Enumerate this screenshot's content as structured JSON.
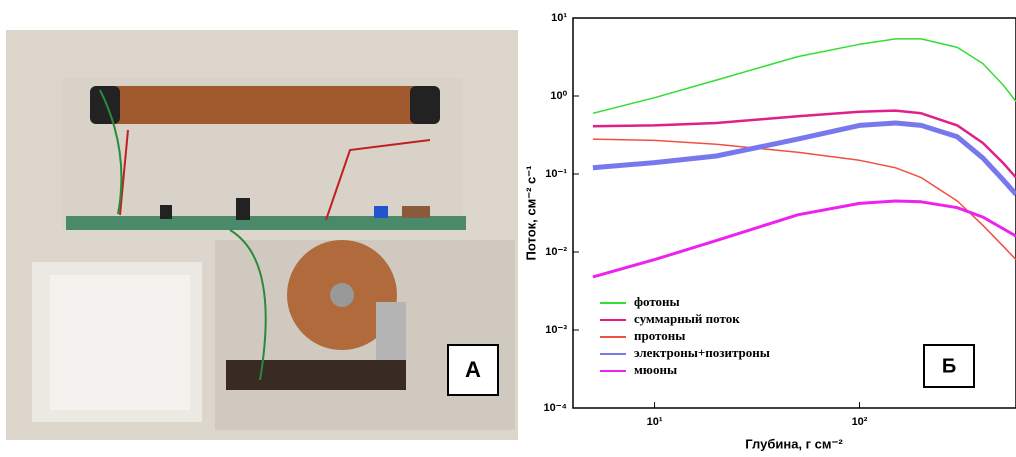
{
  "photo": {
    "label": "А"
  },
  "chart_data": {
    "type": "line",
    "panel_label": "Б",
    "x_label": "Глубина, г см⁻²",
    "y_label": "Поток, см⁻² с⁻¹",
    "xlog": true,
    "ylog": true,
    "xlim": [
      4,
      580
    ],
    "ylim": [
      0.0001,
      10
    ],
    "xticks": [
      {
        "value": 10,
        "label": "10¹"
      },
      {
        "value": 100,
        "label": "10²"
      }
    ],
    "yticks": [
      {
        "value": 0.0001,
        "label": "10⁻⁴"
      },
      {
        "value": 0.001,
        "label": "10⁻³"
      },
      {
        "value": 0.01,
        "label": "10⁻²"
      },
      {
        "value": 0.1,
        "label": "10⁻¹"
      },
      {
        "value": 1,
        "label": "10⁰"
      },
      {
        "value": 10,
        "label": "10¹"
      }
    ],
    "x": [
      5,
      10,
      20,
      50,
      100,
      150,
      200,
      300,
      400,
      500,
      580
    ],
    "series": [
      {
        "name": "фотоны",
        "color": "#33dd33",
        "values": [
          0.6,
          0.95,
          1.6,
          3.2,
          4.6,
          5.4,
          5.4,
          4.2,
          2.6,
          1.4,
          0.85
        ]
      },
      {
        "name": "суммарный поток",
        "color": "#e0208a",
        "values": [
          0.41,
          0.42,
          0.45,
          0.55,
          0.63,
          0.65,
          0.6,
          0.42,
          0.25,
          0.14,
          0.09
        ]
      },
      {
        "name": "протоны",
        "color": "#f05040",
        "values": [
          0.28,
          0.27,
          0.24,
          0.19,
          0.15,
          0.12,
          0.09,
          0.045,
          0.022,
          0.012,
          0.008
        ]
      },
      {
        "name": "электроны+позитроны",
        "color": "#7878ee",
        "values": [
          0.12,
          0.14,
          0.17,
          0.28,
          0.42,
          0.45,
          0.42,
          0.3,
          0.16,
          0.085,
          0.055
        ]
      },
      {
        "name": "мюоны",
        "color": "#ee22ee",
        "values": [
          0.0048,
          0.008,
          0.014,
          0.03,
          0.042,
          0.045,
          0.044,
          0.037,
          0.028,
          0.02,
          0.016
        ]
      }
    ]
  }
}
